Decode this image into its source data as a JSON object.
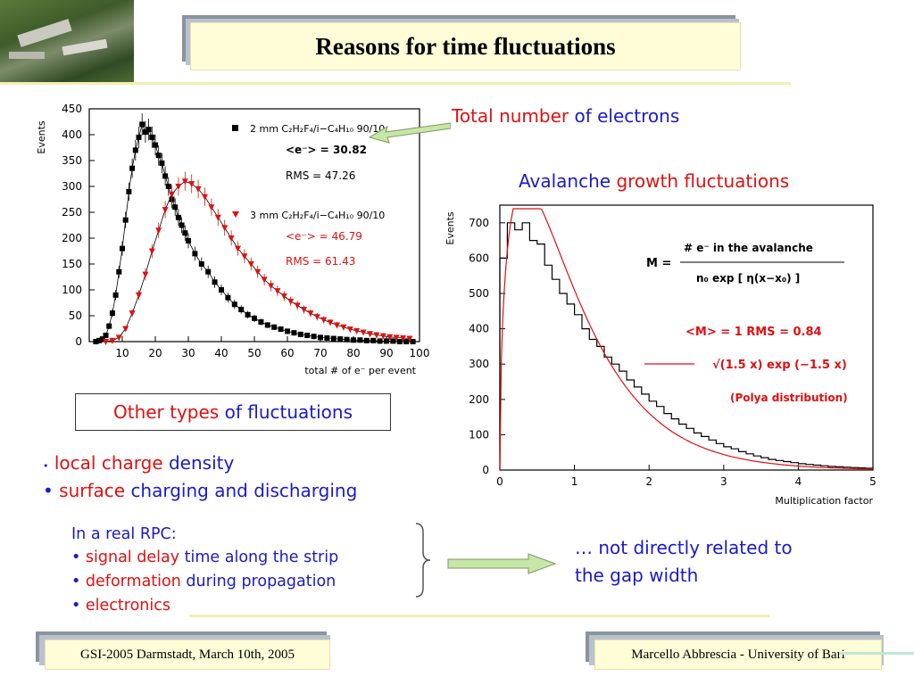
{
  "slide": {
    "title": "Reasons for time fluctuations",
    "total_label": {
      "part1": "Total number",
      "part2": "of electrons"
    },
    "avalanche_label": {
      "part1": "Avalanche",
      "part2": "growth fluctuations"
    },
    "other_box": {
      "part1": "Other types",
      "part2": "of fluctuations"
    },
    "bullets_main": [
      {
        "bullet": "•",
        "part1": "local charge",
        "part2": "density"
      },
      {
        "bullet": "•",
        "part1": "surface",
        "part2": "charging and discharging"
      }
    ],
    "rpc_heading": "In a real RPC:",
    "rpc_bullets": [
      {
        "bullet": "•",
        "part1": "signal delay",
        "part2": "time along the strip"
      },
      {
        "bullet": "•",
        "part1": "deformation",
        "part2": "during propagation"
      },
      {
        "bullet": "•",
        "part1": "electronics",
        "part2": ""
      }
    ],
    "conclusion": {
      "line1": "… not directly related to",
      "line2": "the gap width"
    },
    "footer_left": "GSI-2005 Darmstadt, March 10th, 2005",
    "footer_right": "Marcello Abbrescia - University of Bari",
    "colors": {
      "red": "#e01010",
      "blue": "#1a1acc",
      "title_bg": "#fffdd8",
      "arrow_fill": "#c8e6a8"
    }
  },
  "chart_data": [
    {
      "type": "scatter",
      "xlabel": "total # of e⁻ per event",
      "ylabel": "Events",
      "xlim": [
        0,
        100
      ],
      "ylim": [
        0,
        450
      ],
      "xticks": [
        "10",
        "20",
        "30",
        "40",
        "50",
        "60",
        "70",
        "80",
        "90",
        "100"
      ],
      "yticks": [
        "0",
        "50",
        "100",
        "150",
        "200",
        "250",
        "300",
        "350",
        "400",
        "450"
      ],
      "legend": [
        {
          "marker": "■",
          "gas": "2 mm  C₂H₂F₄/i−C₄H₁₀ 90/10",
          "mean": "<e⁻> = 30.82",
          "rms": "RMS = 47.26"
        },
        {
          "marker": "▼",
          "gas": "3 mm  C₂H₂F₄/i−C₄H₁₀ 90/10",
          "mean": "<e⁻> = 46.79",
          "rms": "RMS = 61.43"
        }
      ],
      "series": [
        {
          "color": "#000000",
          "x": [
            2,
            3,
            4,
            5,
            6,
            7,
            8,
            9,
            10,
            11,
            12,
            13,
            14,
            15,
            16,
            17,
            18,
            19,
            20,
            21,
            22,
            23,
            24,
            25,
            26,
            27,
            28,
            29,
            30,
            32,
            34,
            36,
            38,
            40,
            42,
            44,
            46,
            48,
            50,
            52,
            54,
            56,
            58,
            60,
            62,
            64,
            66,
            68,
            70,
            72,
            74,
            76,
            78,
            80,
            82,
            84,
            86,
            88,
            90,
            92,
            94,
            96,
            98
          ],
          "y": [
            0,
            2,
            5,
            12,
            30,
            55,
            90,
            135,
            180,
            235,
            290,
            335,
            370,
            395,
            420,
            405,
            410,
            395,
            380,
            360,
            345,
            320,
            300,
            275,
            260,
            240,
            225,
            210,
            195,
            170,
            150,
            135,
            115,
            100,
            85,
            72,
            62,
            52,
            45,
            38,
            32,
            28,
            24,
            20,
            17,
            14,
            12,
            10,
            8,
            7,
            6,
            5,
            4,
            3,
            3,
            2,
            2,
            1,
            1,
            1,
            0,
            0,
            0
          ]
        },
        {
          "color": "#e01010",
          "x": [
            5,
            7,
            9,
            11,
            13,
            15,
            17,
            19,
            21,
            23,
            25,
            27,
            29,
            31,
            33,
            35,
            37,
            39,
            41,
            43,
            45,
            47,
            49,
            51,
            53,
            55,
            57,
            59,
            61,
            63,
            65,
            67,
            69,
            71,
            73,
            75,
            77,
            79,
            81,
            83,
            85,
            87,
            89,
            91,
            93,
            95,
            97
          ],
          "y": [
            0,
            2,
            8,
            25,
            55,
            90,
            130,
            175,
            215,
            255,
            285,
            300,
            310,
            305,
            295,
            280,
            260,
            240,
            220,
            200,
            180,
            165,
            150,
            135,
            120,
            108,
            98,
            88,
            78,
            70,
            62,
            55,
            48,
            42,
            37,
            32,
            28,
            24,
            21,
            18,
            15,
            13,
            11,
            9,
            8,
            7,
            6
          ]
        }
      ]
    },
    {
      "type": "bar",
      "xlabel": "Multiplication factor",
      "ylabel": "Events",
      "xlim": [
        0,
        5
      ],
      "ylim": [
        0,
        750
      ],
      "xticks": [
        "0",
        "1",
        "2",
        "3",
        "4",
        "5"
      ],
      "yticks": [
        "0",
        "100",
        "200",
        "300",
        "400",
        "500",
        "600",
        "700"
      ],
      "bin_width": 0.1,
      "values": [
        600,
        700,
        680,
        700,
        650,
        640,
        580,
        540,
        500,
        470,
        440,
        400,
        370,
        350,
        320,
        300,
        280,
        255,
        235,
        215,
        195,
        180,
        160,
        145,
        130,
        118,
        105,
        95,
        85,
        75,
        66,
        60,
        52,
        46,
        40,
        35,
        30,
        27,
        24,
        21,
        18,
        16,
        14,
        12,
        10,
        9,
        8,
        7,
        6,
        5
      ],
      "formula": {
        "lhs": "M =",
        "numerator": "# e⁻ in the avalanche",
        "denominator": "n₀ exp [ η(x−x₀) ]"
      },
      "stats": "<M> = 1  RMS = 0.84",
      "fit_label": "√(1.5 x) exp (−1.5 x)",
      "fit_name": "(Polya distribution)"
    }
  ]
}
